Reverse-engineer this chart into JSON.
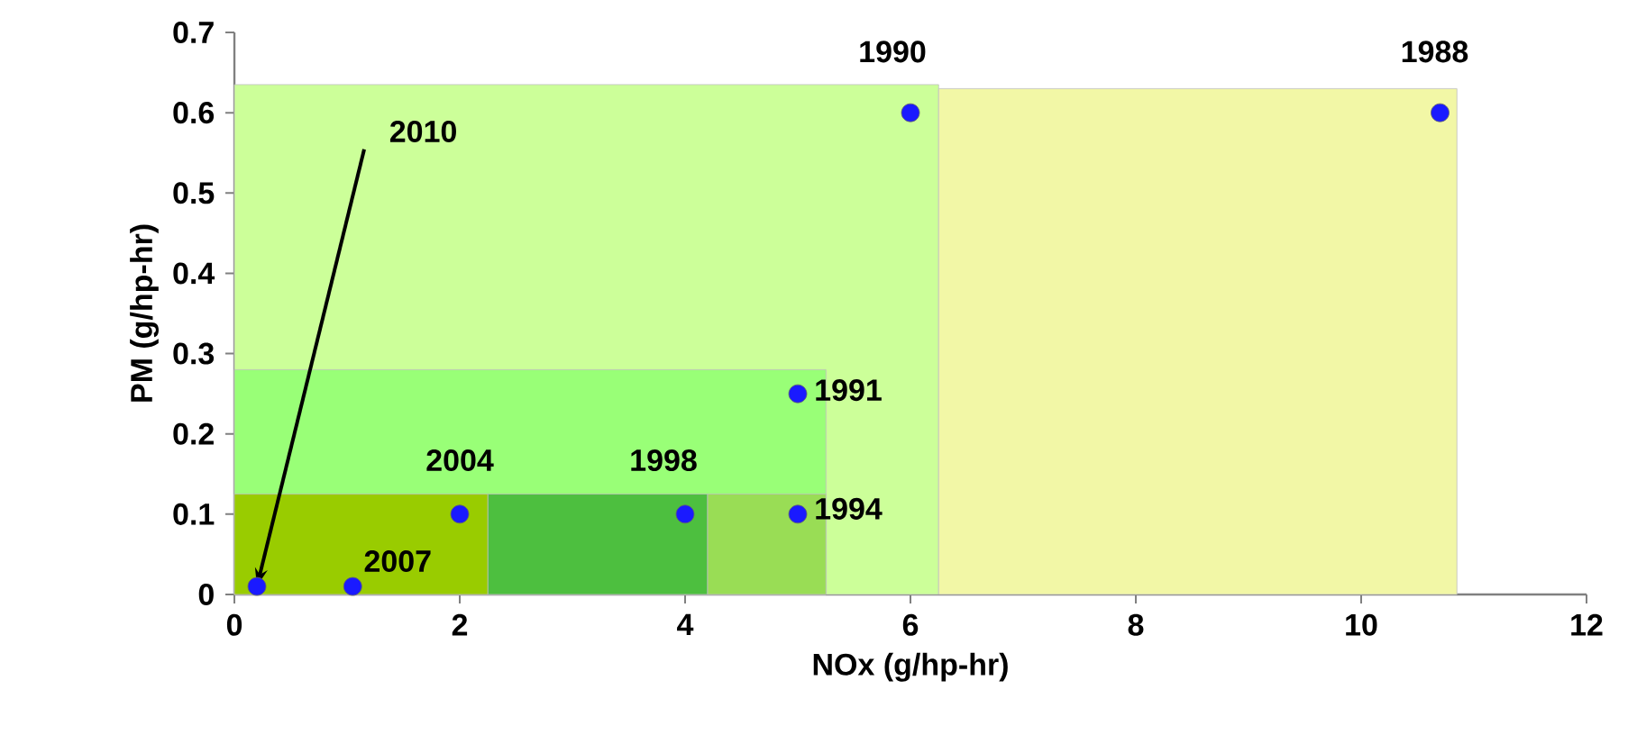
{
  "chart_data": {
    "type": "scatter",
    "xlabel": "NOx (g/hp-hr)",
    "ylabel": "PM (g/hp-hr)",
    "xlim": [
      0,
      12
    ],
    "ylim": [
      0,
      0.7
    ],
    "xticks": [
      0,
      2,
      4,
      6,
      8,
      10,
      12
    ],
    "yticks": [
      0,
      0.1,
      0.2,
      0.3,
      0.4,
      0.5,
      0.6,
      0.7
    ],
    "grid": false,
    "series": [
      {
        "type": "area",
        "color": "#ccff99",
        "x": [
          0,
          6.25
        ],
        "values": [
          0.635,
          0.635
        ]
      },
      {
        "type": "area",
        "color": "#f2f7a6",
        "x": [
          6.25,
          10.85
        ],
        "values": [
          0.63,
          0.63
        ]
      },
      {
        "type": "area",
        "color": "#99ff77",
        "x": [
          0,
          5.25
        ],
        "values": [
          0.28,
          0.28
        ]
      },
      {
        "type": "area",
        "color": "#99cc00",
        "x": [
          0,
          2.25
        ],
        "values": [
          0.125,
          0.125
        ]
      },
      {
        "type": "area",
        "color": "#4dbf3f",
        "x": [
          2.25,
          4.2
        ],
        "values": [
          0.125,
          0.125
        ]
      },
      {
        "type": "area",
        "color": "#99dd55",
        "x": [
          4.2,
          5.25
        ],
        "values": [
          0.125,
          0.125
        ]
      },
      {
        "color": "#1a1aff",
        "x": [
          0.2,
          1.05,
          2,
          4,
          5,
          5,
          6,
          10.7
        ],
        "values": [
          0.01,
          0.01,
          0.1,
          0.1,
          0.1,
          0.25,
          0.6,
          0.6
        ]
      }
    ],
    "annotations": [
      {
        "text": "2010",
        "x": 0.2,
        "y": 0.01
      },
      {
        "text": "2007",
        "x": 1.05,
        "y": 0.01
      },
      {
        "text": "2004",
        "x": 2,
        "y": 0.1
      },
      {
        "text": "1998",
        "x": 4,
        "y": 0.1
      },
      {
        "text": "1994",
        "x": 5,
        "y": 0.1
      },
      {
        "text": "1991",
        "x": 5,
        "y": 0.25
      },
      {
        "text": "1990",
        "x": 6,
        "y": 0.6
      },
      {
        "text": "1988",
        "x": 10.7,
        "y": 0.6
      }
    ]
  }
}
